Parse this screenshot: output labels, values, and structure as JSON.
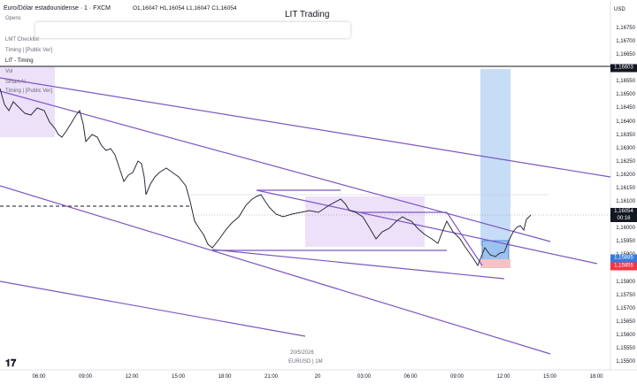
{
  "header": {
    "symbol": "Euro/Dólar estadounidense · 1 · FXCM",
    "ohlc": "O1,16047 H1,16054 L1,16047 C1,16054",
    "currency": "USD",
    "title": "LIT Trading"
  },
  "indicators": [
    "Opens",
    "LMT Checklist",
    "Timing | [Public Ver]",
    "LIT - Timing",
    "Vol",
    "Smart AI",
    "Timing | [Public Ver]"
  ],
  "price_axis": [
    "1,16750",
    "1,16700",
    "1,16650",
    "1,16600",
    "1,16550",
    "1,16500",
    "1,16450",
    "1,16400",
    "1,16350",
    "1,16300",
    "1,16250",
    "1,16200",
    "1,16150",
    "1,16100",
    "1,16050",
    "1,16000",
    "1,15950",
    "1,15900",
    "1,15850",
    "1,15800",
    "1,15750",
    "1,15700",
    "1,15650",
    "1,15600",
    "1,15550",
    "1,15500"
  ],
  "price_tags": {
    "level": "1,16603",
    "last": "1,16054",
    "countdown": "00:16",
    "blue": "1,15885",
    "red": "1,15855"
  },
  "time_axis": [
    "06:00",
    "09:00",
    "12:00",
    "15:00",
    "18:00",
    "21:00",
    "20",
    "03:00",
    "06:00",
    "09:00",
    "12:00",
    "15:00",
    "18:00"
  ],
  "footer": {
    "date": "20/5/2026",
    "symbol": "EURUSD | 1M"
  }
}
